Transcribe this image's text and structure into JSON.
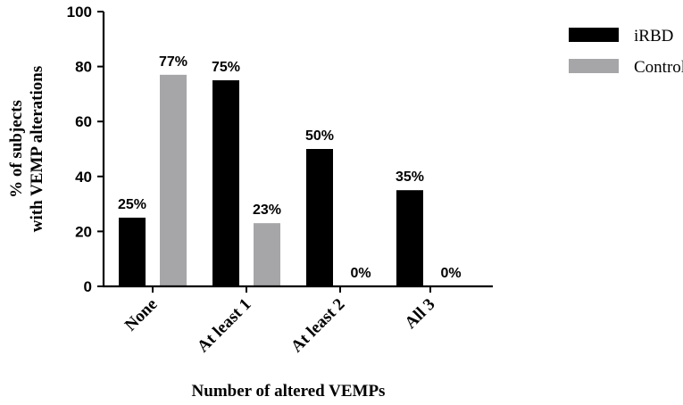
{
  "chart_data": {
    "type": "bar",
    "categories": [
      "None",
      "At least 1",
      "At least 2",
      "All 3"
    ],
    "series": [
      {
        "name": "iRBD",
        "values": [
          25,
          75,
          50,
          35
        ],
        "labels": [
          "25%",
          "75%",
          "50%",
          "35%"
        ],
        "color": "#000000"
      },
      {
        "name": "Controls",
        "values": [
          77,
          23,
          0,
          0
        ],
        "labels": [
          "77%",
          "23%",
          "0%",
          "0%"
        ],
        "color": "#a6a6a8"
      }
    ],
    "xlabel": "Number of altered VEMPs",
    "ylabel_line1": "% of subjects",
    "ylabel_line2": "with VEMP alterations",
    "ylim": [
      0,
      100
    ],
    "yticks": [
      0,
      20,
      40,
      60,
      80,
      100
    ],
    "ytick_labels": [
      "0",
      "20",
      "40",
      "60",
      "80",
      "100"
    ],
    "legend_position": "top-right",
    "grid": false
  }
}
